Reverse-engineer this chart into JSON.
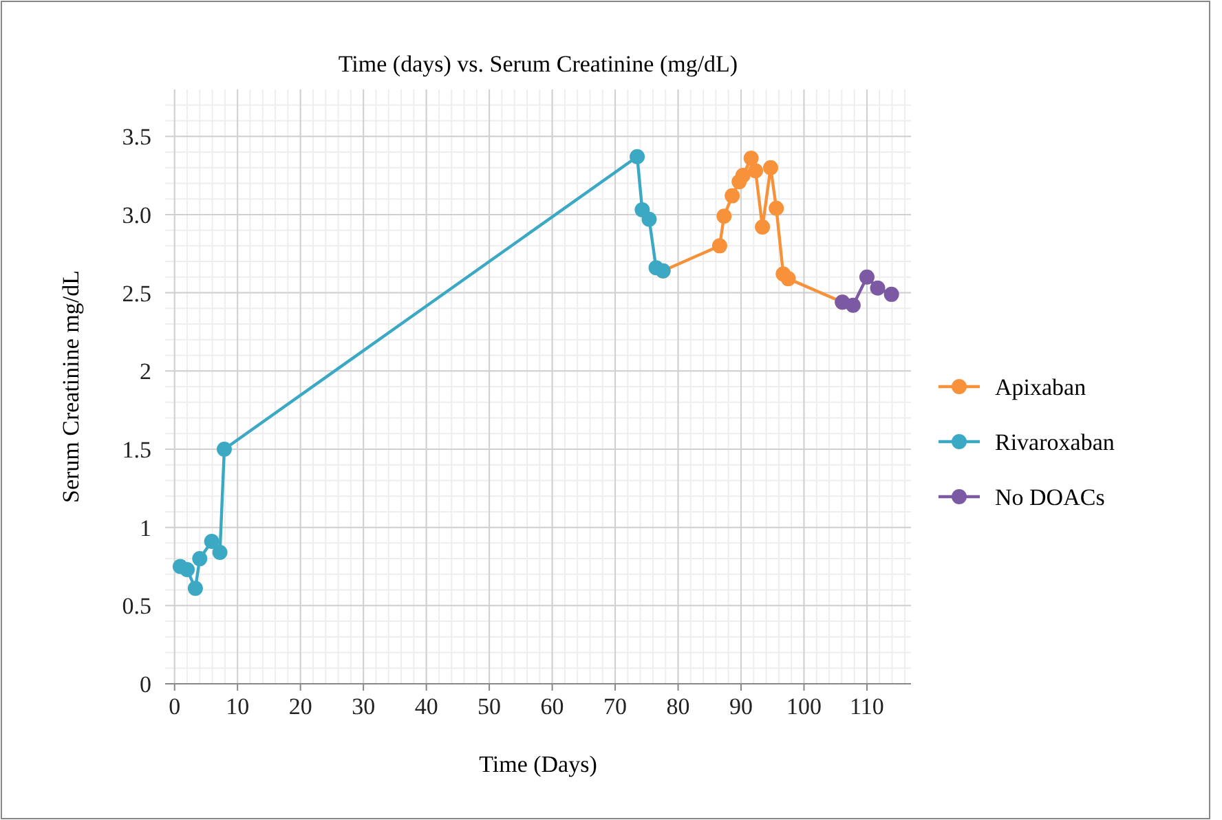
{
  "chart_data": {
    "type": "line",
    "title": "Time (days) vs. Serum Creatinine (mg/dL)",
    "xlabel": "Time (Days)",
    "ylabel": "Serum Creatinine mg/dL",
    "xlim": [
      -1.5,
      117
    ],
    "xticks": [
      0,
      10,
      20,
      30,
      40,
      50,
      60,
      70,
      80,
      90,
      100,
      110
    ],
    "ylim": [
      0,
      3.8
    ],
    "yticks": [
      0,
      0.5,
      1,
      1.5,
      2,
      2.5,
      {
        "value": 3,
        "label": "3.0"
      },
      3.5
    ],
    "grid": true,
    "legend": "right",
    "marker": "circle",
    "line_style": "solid",
    "series": [
      {
        "name": "Apixaban",
        "color": "#f7923a",
        "x": [
          77.6,
          86.6,
          87.3,
          88.6,
          89.7,
          90.3,
          91.6,
          92.3,
          93.4,
          94.7,
          95.6,
          96.7,
          97.5,
          106.1
        ],
        "values": [
          2.64,
          2.8,
          2.99,
          3.12,
          3.21,
          3.25,
          3.36,
          3.28,
          2.92,
          3.3,
          3.04,
          2.62,
          2.59,
          2.44
        ]
      },
      {
        "name": "Rivaroxaban",
        "color": "#3ba9c4",
        "x": [
          0.9,
          2,
          3.3,
          4,
          5.9,
          7.2,
          7.9,
          73.5,
          74.3,
          75.4,
          76.5,
          77.6
        ],
        "values": [
          0.75,
          0.73,
          0.61,
          0.8,
          0.91,
          0.84,
          1.5,
          3.37,
          3.03,
          2.97,
          2.66,
          2.64
        ]
      },
      {
        "name": "No DOACs",
        "color": "#7b59a3",
        "x": [
          106.1,
          107.8,
          110,
          111.7,
          113.9
        ],
        "values": [
          2.44,
          2.42,
          2.6,
          2.53,
          2.49
        ]
      }
    ]
  }
}
